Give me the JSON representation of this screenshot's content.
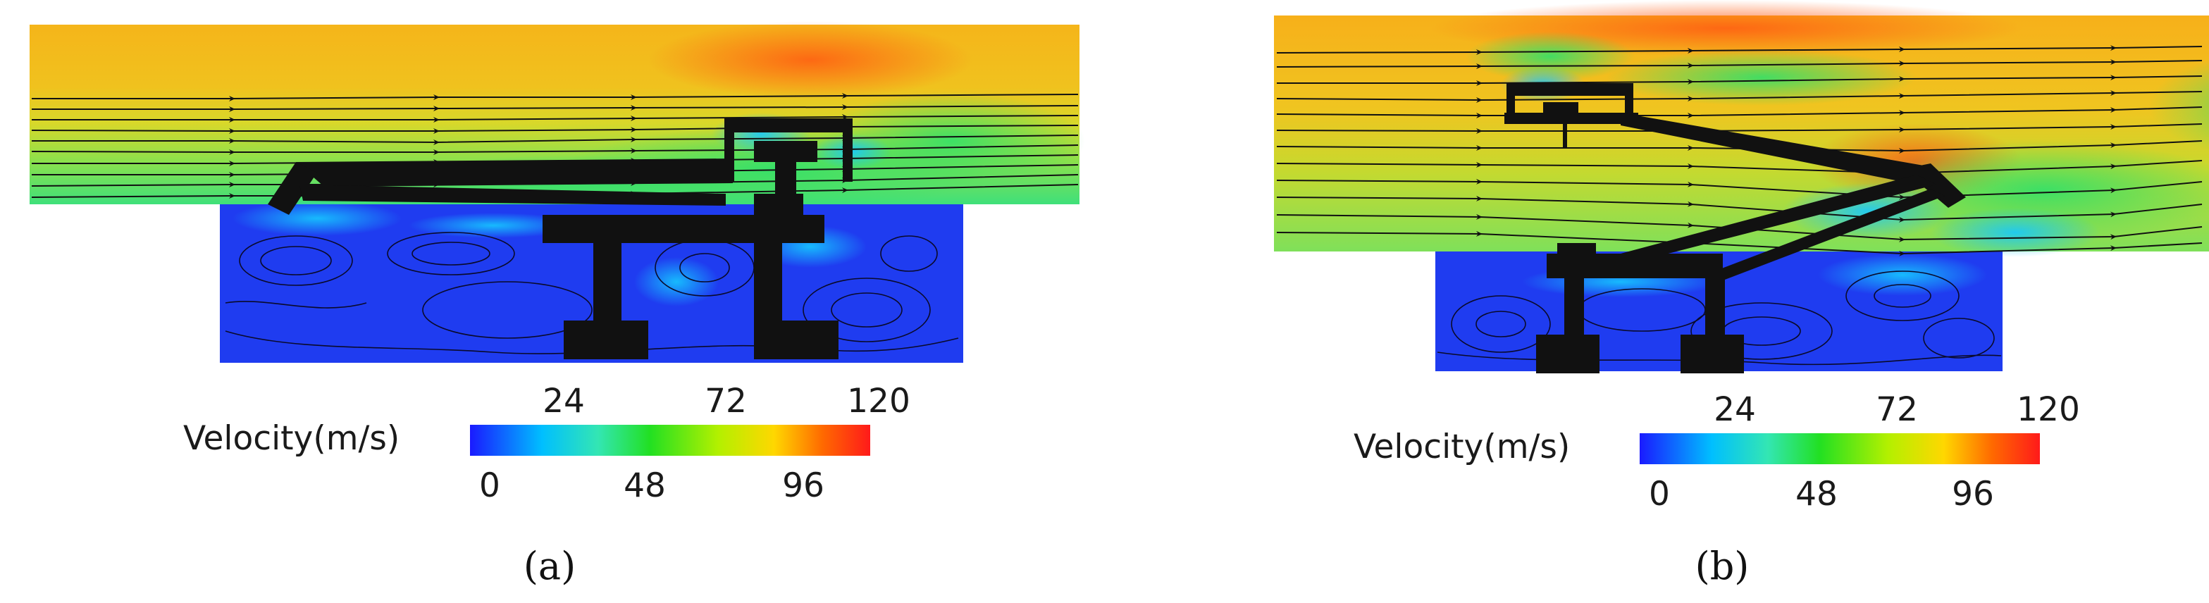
{
  "figure": {
    "panels": [
      {
        "id": "a",
        "caption": "(a)",
        "legend": {
          "title": "Velocity(m/s)",
          "top_ticks": [
            "24",
            "72",
            "120"
          ],
          "bottom_ticks": [
            "0",
            "48",
            "96"
          ]
        }
      },
      {
        "id": "b",
        "caption": "(b)",
        "legend": {
          "title": "Velocity(m/s)",
          "top_ticks": [
            "24",
            "72",
            "120"
          ],
          "bottom_ticks": [
            "0",
            "48",
            "96"
          ]
        }
      }
    ],
    "colorbar": {
      "min": 0,
      "max": 120,
      "stops": [
        "#1a1aff",
        "#00bfff",
        "#33e6b3",
        "#22e022",
        "#b3f000",
        "#ffd700",
        "#ff6a00",
        "#ff1a1a"
      ]
    },
    "colors": {
      "freestream": "#f2b21e",
      "wake": "#3fe07a",
      "cavity": "#1f3cf0",
      "structure": "#111111"
    }
  }
}
